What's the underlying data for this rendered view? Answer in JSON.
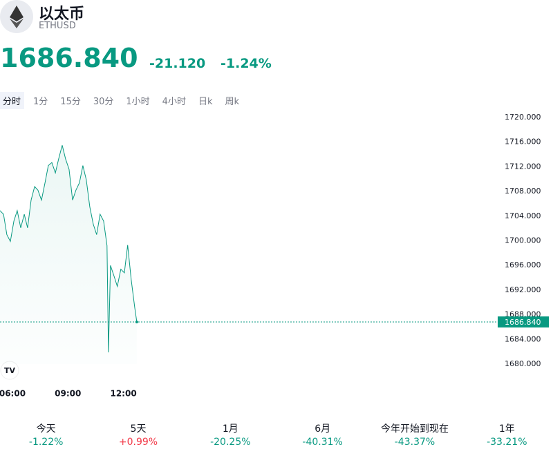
{
  "header": {
    "title": "以太币",
    "symbol": "ETHUSD",
    "price": "1686.840",
    "change": "-21.120",
    "change_pct": "-1.24%"
  },
  "tabs": [
    "分时",
    "1分",
    "15分",
    "30分",
    "1小时",
    "4小时",
    "日k",
    "周k"
  ],
  "chart_data": {
    "type": "line",
    "color": "#089981",
    "x": [
      5.33,
      5.52,
      5.7,
      5.89,
      6.08,
      6.26,
      6.45,
      6.64,
      6.82,
      7.01,
      7.2,
      7.38,
      7.57,
      7.76,
      7.94,
      8.13,
      8.32,
      8.5,
      8.69,
      8.87,
      9.06,
      9.25,
      9.43,
      9.62,
      9.81,
      9.99,
      10.18,
      10.37,
      10.55,
      10.74,
      10.93,
      11.11,
      11.19,
      11.3,
      11.49,
      11.67,
      11.86,
      12.05,
      12.23,
      12.42,
      12.61,
      12.72
    ],
    "values": [
      1704.9,
      1704.3,
      1701.0,
      1699.9,
      1703.2,
      1704.9,
      1702.1,
      1704.3,
      1702.1,
      1706.6,
      1708.8,
      1708.2,
      1706.6,
      1709.4,
      1712.2,
      1712.7,
      1711.0,
      1713.3,
      1715.5,
      1713.3,
      1711.6,
      1706.6,
      1708.2,
      1709.4,
      1712.2,
      1709.9,
      1705.5,
      1702.7,
      1701.0,
      1704.3,
      1703.2,
      1699.2,
      1681.9,
      1696.0,
      1694.3,
      1692.6,
      1695.4,
      1694.8,
      1699.3,
      1693.7,
      1689.2,
      1686.84
    ],
    "xlim": [
      5.33,
      12.8
    ],
    "xticks": [
      {
        "value": 6,
        "label": "06:00"
      },
      {
        "value": 9,
        "label": "09:00"
      },
      {
        "value": 12,
        "label": "12:00"
      }
    ],
    "ylim": [
      1680,
      1720
    ],
    "yticks": [
      {
        "value": 1680,
        "label": "1680.000"
      },
      {
        "value": 1684,
        "label": "1684.000"
      },
      {
        "value": 1688,
        "label": "1688.000"
      },
      {
        "value": 1692,
        "label": "1692.000"
      },
      {
        "value": 1696,
        "label": "1696.000"
      },
      {
        "value": 1700,
        "label": "1700.000"
      },
      {
        "value": 1704,
        "label": "1704.000"
      },
      {
        "value": 1708,
        "label": "1708.000"
      },
      {
        "value": 1712,
        "label": "1712.000"
      },
      {
        "value": 1716,
        "label": "1716.000"
      },
      {
        "value": 1720,
        "label": "1720.000"
      }
    ],
    "last_price": {
      "value": 1686.84,
      "label": "1686.840"
    }
  },
  "periods": [
    {
      "name": "今天",
      "value": "-1.22%",
      "color": "#089981"
    },
    {
      "name": "5天",
      "value": "+0.99%",
      "color": "#f23645"
    },
    {
      "name": "1月",
      "value": "-20.25%",
      "color": "#089981"
    },
    {
      "name": "6月",
      "value": "-40.31%",
      "color": "#089981"
    },
    {
      "name": "今年开始到现在",
      "value": "-43.37%",
      "color": "#089981"
    },
    {
      "name": "1年",
      "value": "-33.21%",
      "color": "#089981"
    }
  ]
}
